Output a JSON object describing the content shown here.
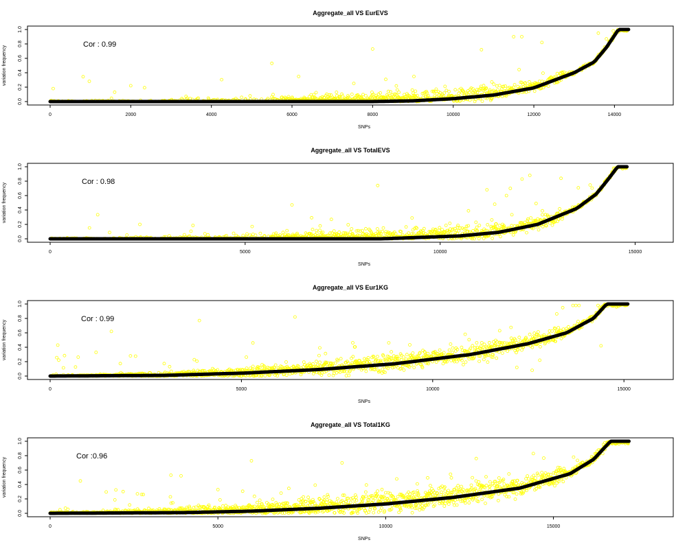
{
  "figure": {
    "scatter_color": "#ffff00",
    "line_color": "#000000"
  },
  "chart_data": [
    {
      "type": "scatter",
      "title": "Aggregate_all VS EurEVS",
      "xlabel": "SNPs",
      "ylabel": "variation frequency",
      "annotation": "Cor :  0.99",
      "n": 14350,
      "xlim": [
        0,
        14900
      ],
      "ylim": [
        0,
        1
      ],
      "xticks": [
        0,
        2000,
        4000,
        6000,
        8000,
        10000,
        12000,
        14000
      ],
      "yticks": [
        0.0,
        0.2,
        0.4,
        0.6,
        0.8,
        1.0
      ],
      "sorted_curve": [
        [
          0,
          0.0
        ],
        [
          8000,
          0.0
        ],
        [
          9000,
          0.01
        ],
        [
          10000,
          0.04
        ],
        [
          11000,
          0.09
        ],
        [
          12000,
          0.19
        ],
        [
          13000,
          0.4
        ],
        [
          13500,
          0.55
        ],
        [
          13800,
          0.75
        ],
        [
          14100,
          1.0
        ],
        [
          14350,
          1.0
        ]
      ],
      "scatter": {
        "start_frac": 0.4,
        "spread": [
          0.012,
          0.022,
          0.045,
          0.07,
          0.1,
          0.13,
          0.13,
          0.08,
          0.03
        ],
        "outlier_count": 30
      },
      "outliers": [
        [
          1600,
          0.13
        ],
        [
          2000,
          0.22
        ],
        [
          5500,
          0.53
        ],
        [
          8000,
          0.73
        ],
        [
          10700,
          0.72
        ],
        [
          11500,
          0.9
        ],
        [
          11700,
          0.9
        ],
        [
          12200,
          0.82
        ],
        [
          13800,
          0.87
        ],
        [
          13600,
          0.95
        ]
      ]
    },
    {
      "type": "scatter",
      "title": "Aggregate_all VS TotalEVS",
      "xlabel": "SNPs",
      "ylabel": "variation frequency",
      "annotation": "Cor : 0.98",
      "n": 14790,
      "xlim": [
        0,
        15400
      ],
      "ylim": [
        0,
        1
      ],
      "xticks": [
        0,
        5000,
        10000,
        15000
      ],
      "yticks": [
        0.0,
        0.2,
        0.4,
        0.6,
        0.8,
        1.0
      ],
      "sorted_curve": [
        [
          0,
          0.0
        ],
        [
          8500,
          0.0
        ],
        [
          9500,
          0.02
        ],
        [
          10500,
          0.04
        ],
        [
          11500,
          0.09
        ],
        [
          12500,
          0.2
        ],
        [
          13500,
          0.42
        ],
        [
          14000,
          0.62
        ],
        [
          14300,
          0.82
        ],
        [
          14550,
          1.0
        ],
        [
          14790,
          1.0
        ]
      ],
      "scatter": {
        "start_frac": 0.38,
        "spread": [
          0.012,
          0.025,
          0.05,
          0.08,
          0.11,
          0.14,
          0.14,
          0.09,
          0.03
        ],
        "outlier_count": 30
      },
      "outliers": [
        [
          2300,
          0.2
        ],
        [
          6200,
          0.47
        ],
        [
          8400,
          0.74
        ],
        [
          11200,
          0.68
        ],
        [
          11800,
          0.7
        ],
        [
          11400,
          0.48
        ],
        [
          11700,
          0.6
        ],
        [
          12100,
          0.83
        ],
        [
          12300,
          0.88
        ],
        [
          13100,
          0.84
        ]
      ]
    },
    {
      "type": "scatter",
      "title": "Aggregate_all VS Eur1KG",
      "xlabel": "SNPs",
      "ylabel": "variation frequency",
      "annotation": "Cor : 0.99",
      "n": 15100,
      "xlim": [
        0,
        15700
      ],
      "ylim": [
        0,
        1
      ],
      "xticks": [
        0,
        5000,
        10000,
        15000
      ],
      "yticks": [
        0.0,
        0.2,
        0.4,
        0.6,
        0.8,
        1.0
      ],
      "sorted_curve": [
        [
          0,
          0.0
        ],
        [
          3000,
          0.01
        ],
        [
          5000,
          0.04
        ],
        [
          7000,
          0.09
        ],
        [
          9000,
          0.17
        ],
        [
          11000,
          0.3
        ],
        [
          12500,
          0.45
        ],
        [
          13500,
          0.6
        ],
        [
          14200,
          0.8
        ],
        [
          14550,
          1.0
        ],
        [
          15100,
          1.0
        ]
      ],
      "scatter": {
        "start_frac": 0.05,
        "spread": [
          0.015,
          0.03,
          0.06,
          0.09,
          0.12,
          0.13,
          0.13,
          0.1,
          0.05
        ],
        "outlier_count": 45
      },
      "outliers": [
        [
          200,
          0.43
        ],
        [
          1200,
          0.33
        ],
        [
          1600,
          0.62
        ],
        [
          2100,
          0.28
        ],
        [
          3900,
          0.77
        ],
        [
          5300,
          0.46
        ],
        [
          6400,
          0.82
        ],
        [
          12200,
          0.12
        ],
        [
          12600,
          0.08
        ],
        [
          12800,
          0.22
        ],
        [
          14400,
          0.42
        ],
        [
          13400,
          0.95
        ]
      ]
    },
    {
      "type": "scatter",
      "title": "Aggregate_all VS Total1KG",
      "xlabel": "SNPs",
      "ylabel": "variation frequency",
      "annotation": "Cor :0.96",
      "n": 17250,
      "xlim": [
        0,
        17900
      ],
      "ylim": [
        0,
        1
      ],
      "xticks": [
        0,
        5000,
        10000,
        15000
      ],
      "yticks": [
        0.0,
        0.2,
        0.4,
        0.6,
        0.8,
        1.0
      ],
      "sorted_curve": [
        [
          0,
          0.0
        ],
        [
          4000,
          0.01
        ],
        [
          6000,
          0.03
        ],
        [
          8000,
          0.07
        ],
        [
          10000,
          0.13
        ],
        [
          12000,
          0.22
        ],
        [
          14000,
          0.35
        ],
        [
          15500,
          0.55
        ],
        [
          16200,
          0.75
        ],
        [
          16700,
          1.0
        ],
        [
          17250,
          1.0
        ]
      ],
      "scatter": {
        "start_frac": 0.0,
        "spread": [
          0.02,
          0.045,
          0.08,
          0.11,
          0.14,
          0.16,
          0.17,
          0.13,
          0.05
        ],
        "outlier_count": 60
      },
      "outliers": [
        [
          900,
          0.45
        ],
        [
          3600,
          0.53
        ],
        [
          3900,
          0.52
        ],
        [
          6000,
          0.73
        ],
        [
          8700,
          0.7
        ],
        [
          5000,
          0.33
        ],
        [
          2600,
          0.27
        ],
        [
          12700,
          0.76
        ],
        [
          14400,
          0.83
        ],
        [
          15600,
          0.78
        ],
        [
          16300,
          0.86
        ]
      ]
    }
  ]
}
